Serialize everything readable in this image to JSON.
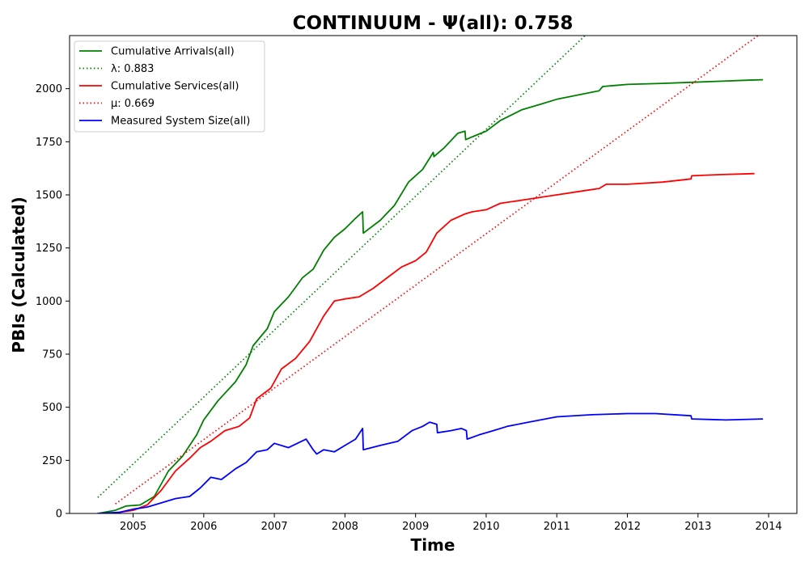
{
  "chart_data": {
    "type": "line",
    "title": "CONTINUUM -  Ψ(all): 0.758",
    "xlabel": "Time",
    "ylabel": "PBIs (Calculated)",
    "xlim": [
      2004.1,
      2014.4
    ],
    "ylim": [
      0,
      2250
    ],
    "x_ticks": [
      2005,
      2006,
      2007,
      2008,
      2009,
      2010,
      2011,
      2012,
      2013,
      2014
    ],
    "x_tick_labels": [
      "2005",
      "2006",
      "2007",
      "2008",
      "2009",
      "2010",
      "2011",
      "2012",
      "2013",
      "2014"
    ],
    "y_ticks": [
      0,
      250,
      500,
      750,
      1000,
      1250,
      1500,
      1750,
      2000
    ],
    "y_tick_labels": [
      "0",
      "250",
      "500",
      "750",
      "1000",
      "1250",
      "1500",
      "1750",
      "2000"
    ],
    "grid": false,
    "legend_position": "top-left",
    "series": [
      {
        "name": "Cumulative Arrivals(all)",
        "color": "#008000",
        "style": "solid",
        "x": [
          2004.5,
          2004.75,
          2004.9,
          2005.1,
          2005.3,
          2005.5,
          2005.7,
          2005.9,
          2006.0,
          2006.2,
          2006.45,
          2006.6,
          2006.7,
          2006.9,
          2007.0,
          2007.2,
          2007.4,
          2007.55,
          2007.7,
          2007.85,
          2008.0,
          2008.15,
          2008.25,
          2008.26,
          2008.5,
          2008.7,
          2008.9,
          2009.1,
          2009.25,
          2009.26,
          2009.4,
          2009.6,
          2009.7,
          2009.71,
          2009.85,
          2010.0,
          2010.2,
          2010.5,
          2010.8,
          2011.0,
          2011.3,
          2011.6,
          2011.65,
          2012.0,
          2012.5,
          2012.9,
          2013.3,
          2013.7,
          2013.92
        ],
        "y": [
          0,
          15,
          35,
          40,
          80,
          200,
          270,
          370,
          440,
          530,
          620,
          700,
          790,
          870,
          950,
          1020,
          1110,
          1150,
          1240,
          1300,
          1340,
          1390,
          1420,
          1320,
          1380,
          1450,
          1560,
          1620,
          1700,
          1680,
          1720,
          1790,
          1800,
          1760,
          1780,
          1800,
          1850,
          1900,
          1930,
          1950,
          1970,
          1990,
          2010,
          2020,
          2025,
          2030,
          2035,
          2040,
          2042
        ]
      },
      {
        "name": "λ: 0.883",
        "color": "#008000",
        "style": "dotted",
        "x": [
          2004.5,
          2011.4
        ],
        "y": [
          75,
          2250
        ]
      },
      {
        "name": "Cumulative Services(all)",
        "color": "#ff0000",
        "style": "solid",
        "x": [
          2004.6,
          2004.8,
          2005.0,
          2005.2,
          2005.4,
          2005.6,
          2005.8,
          2005.95,
          2006.1,
          2006.3,
          2006.5,
          2006.65,
          2006.75,
          2006.95,
          2007.1,
          2007.3,
          2007.5,
          2007.7,
          2007.85,
          2008.0,
          2008.2,
          2008.4,
          2008.6,
          2008.8,
          2009.0,
          2009.15,
          2009.3,
          2009.5,
          2009.7,
          2009.8,
          2010.0,
          2010.2,
          2010.5,
          2010.8,
          2011.0,
          2011.4,
          2011.6,
          2011.7,
          2012.0,
          2012.5,
          2012.9,
          2012.91,
          2013.3,
          2013.8
        ],
        "y": [
          0,
          5,
          15,
          40,
          110,
          200,
          260,
          310,
          340,
          390,
          410,
          450,
          540,
          590,
          680,
          730,
          810,
          930,
          1000,
          1010,
          1020,
          1060,
          1110,
          1160,
          1190,
          1230,
          1320,
          1380,
          1410,
          1420,
          1430,
          1460,
          1475,
          1490,
          1500,
          1520,
          1530,
          1550,
          1550,
          1560,
          1575,
          1590,
          1595,
          1600
        ]
      },
      {
        "name": "μ: 0.669",
        "color": "#ff0000",
        "style": "dotted",
        "x": [
          2004.75,
          2013.85
        ],
        "y": [
          45,
          2250
        ]
      },
      {
        "name": "Measured System Size(all)",
        "color": "#0000ff",
        "style": "solid",
        "x": [
          2004.5,
          2004.8,
          2005.0,
          2005.2,
          2005.4,
          2005.6,
          2005.8,
          2005.95,
          2006.1,
          2006.25,
          2006.45,
          2006.6,
          2006.75,
          2006.9,
          2007.0,
          2007.2,
          2007.45,
          2007.55,
          2007.6,
          2007.7,
          2007.85,
          2008.0,
          2008.15,
          2008.25,
          2008.26,
          2008.5,
          2008.75,
          2008.95,
          2009.1,
          2009.2,
          2009.3,
          2009.31,
          2009.5,
          2009.65,
          2009.72,
          2009.73,
          2009.9,
          2010.1,
          2010.3,
          2010.6,
          2011.0,
          2011.5,
          2012.0,
          2012.4,
          2012.9,
          2012.91,
          2013.4,
          2013.92
        ],
        "y": [
          0,
          5,
          20,
          30,
          50,
          70,
          80,
          120,
          170,
          160,
          210,
          240,
          290,
          300,
          330,
          310,
          350,
          300,
          280,
          300,
          290,
          320,
          350,
          400,
          300,
          320,
          340,
          390,
          410,
          430,
          420,
          380,
          390,
          400,
          390,
          350,
          370,
          390,
          410,
          430,
          455,
          465,
          470,
          470,
          460,
          445,
          440,
          445
        ]
      }
    ]
  }
}
